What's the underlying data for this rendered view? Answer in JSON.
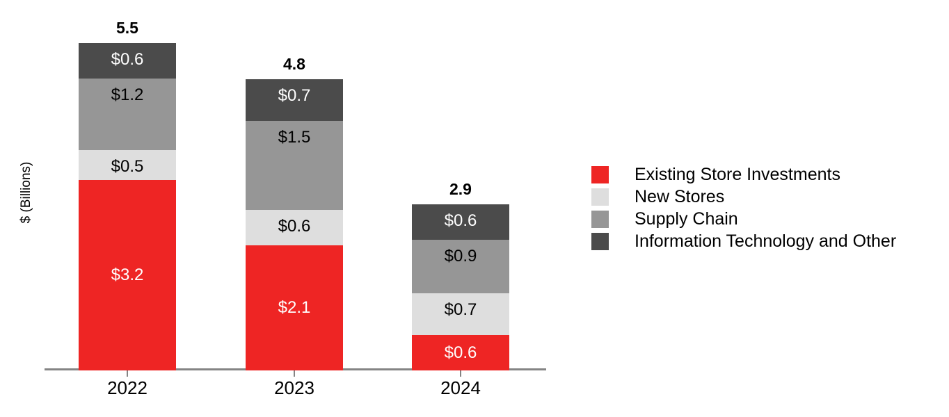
{
  "chart_data": {
    "type": "bar",
    "stacked": true,
    "title": "",
    "ylabel": "$ (Billions)",
    "legend_position": "right",
    "grid": false,
    "axis_color": "#848484",
    "categories": [
      "2022",
      "2023",
      "2024"
    ],
    "totals": [
      "5.5",
      "4.8",
      "2.9"
    ],
    "ylim": [
      0,
      5.5
    ],
    "series": [
      {
        "name": "Existing Store Investments",
        "color": "#EE2524",
        "label_color": "#FFFFFF",
        "label_position": "center",
        "values": [
          3.2,
          2.1,
          0.6
        ],
        "labels": [
          "$3.2",
          "$2.1",
          "$0.6"
        ]
      },
      {
        "name": "New Stores",
        "color": "#DEDEDE",
        "label_color": "#000000",
        "label_position": "top",
        "values": [
          0.5,
          0.6,
          0.7
        ],
        "labels": [
          "$0.5",
          "$0.6",
          "$0.7"
        ]
      },
      {
        "name": "Supply Chain",
        "color": "#969696",
        "label_color": "#000000",
        "label_position": "top",
        "values": [
          1.2,
          1.5,
          0.9
        ],
        "labels": [
          "$1.2",
          "$1.5",
          "$0.9"
        ]
      },
      {
        "name": "Information Technology and Other",
        "color": "#4B4B4B",
        "label_color": "#FFFFFF",
        "label_position": "top",
        "values": [
          0.6,
          0.7,
          0.6
        ],
        "labels": [
          "$0.6",
          "$0.7",
          "$0.6"
        ]
      }
    ]
  }
}
